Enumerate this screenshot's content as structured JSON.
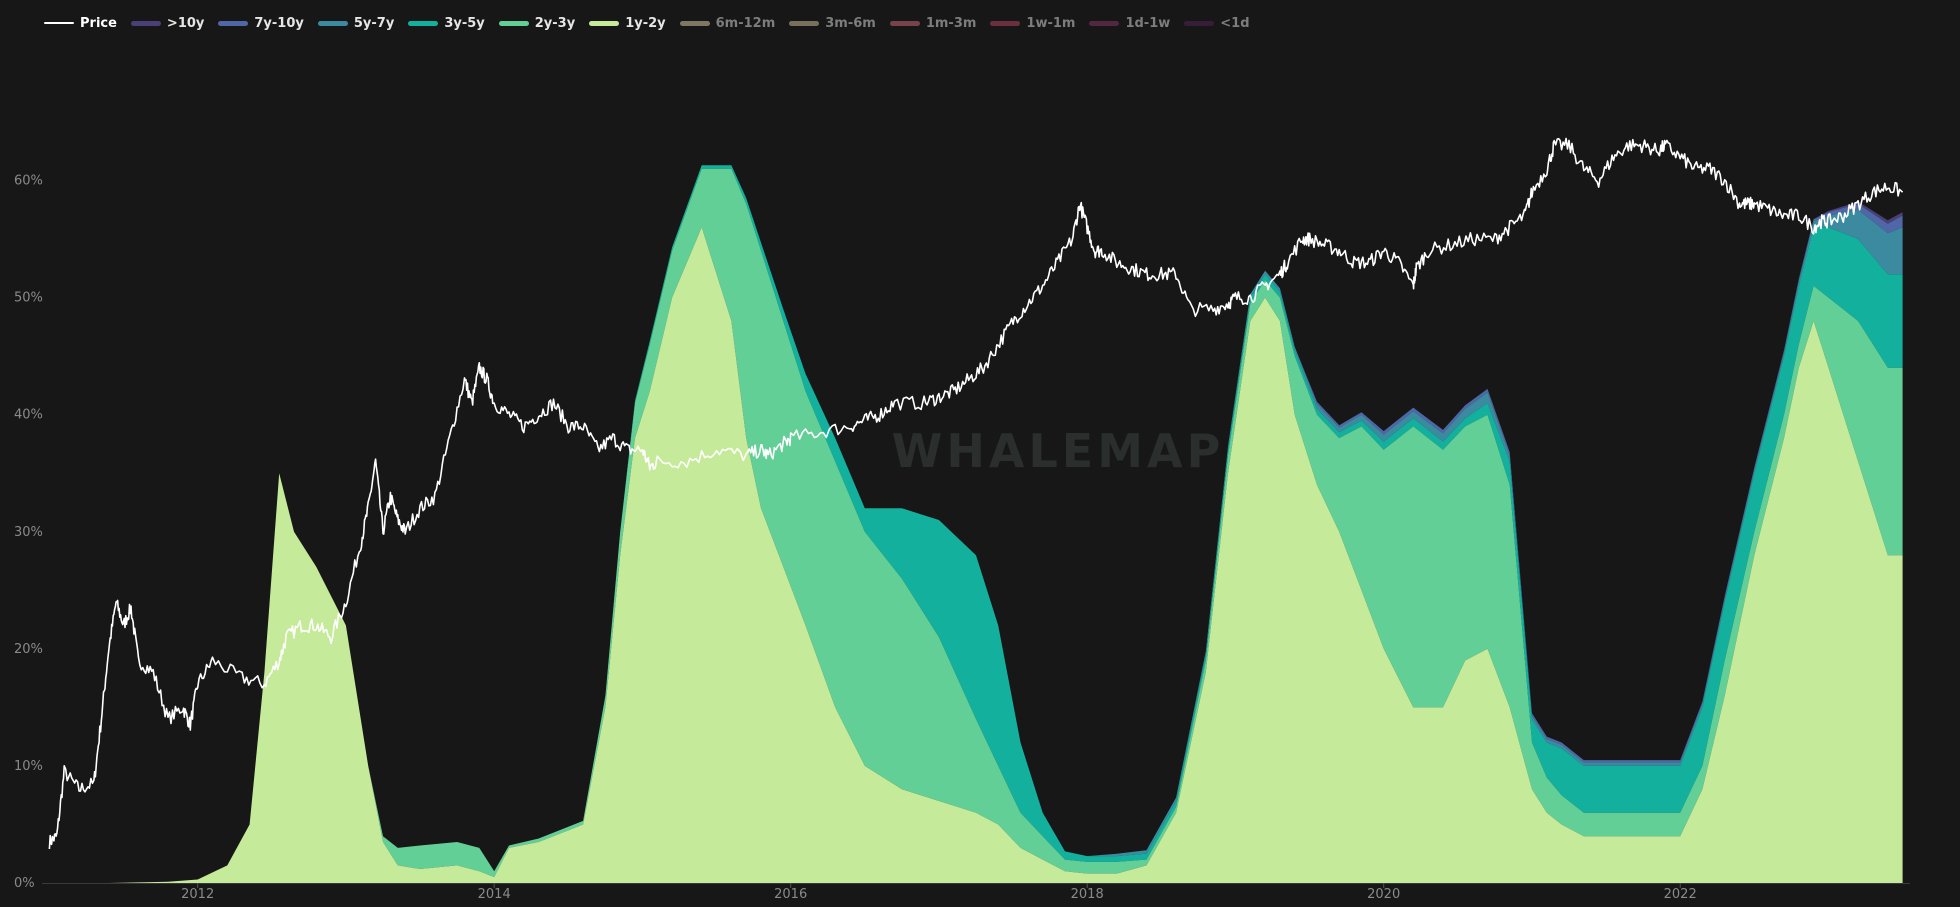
{
  "watermark": "WHALEMAP",
  "legend": [
    {
      "label": "Price",
      "color": "#ffffff",
      "active": true
    },
    {
      "label": ">10y",
      "color": "#4b3f78",
      "active": true
    },
    {
      "label": "7y-10y",
      "color": "#4f67a6",
      "active": true
    },
    {
      "label": "5y-7y",
      "color": "#3b8aa0",
      "active": true
    },
    {
      "label": "3y-5y",
      "color": "#14b09e",
      "active": true
    },
    {
      "label": "2y-3y",
      "color": "#62cf96",
      "active": true
    },
    {
      "label": "1y-2y",
      "color": "#c5eb9a",
      "active": true
    },
    {
      "label": "6m-12m",
      "color": "#8e8a6e",
      "active": false
    },
    {
      "label": "3m-6m",
      "color": "#8a7f6a",
      "active": false
    },
    {
      "label": "1m-3m",
      "color": "#8a4a55",
      "active": false
    },
    {
      "label": "1w-1m",
      "color": "#7a3448",
      "active": false
    },
    {
      "label": "1d-1w",
      "color": "#5e2a45",
      "active": false
    },
    {
      "label": "<1d",
      "color": "#3e1e3f",
      "active": false
    }
  ],
  "chart_data": {
    "type": "area",
    "stacked": true,
    "xlim": [
      2010.95,
      2023.55
    ],
    "ylim": [
      0,
      72
    ],
    "y_ticks": [
      0,
      10,
      20,
      30,
      40,
      50,
      60
    ],
    "y_tick_labels": [
      "0%",
      "10%",
      "20%",
      "30%",
      "40%",
      "50%",
      "60%"
    ],
    "x_ticks": [
      2012,
      2014,
      2016,
      2018,
      2020,
      2022
    ],
    "x_tick_labels": [
      "2012",
      "2014",
      "2016",
      "2018",
      "2020",
      "2022"
    ],
    "grid": false,
    "legend_position": "top-left",
    "x": [
      2011.0,
      2011.4,
      2011.8,
      2012.0,
      2012.2,
      2012.35,
      2012.45,
      2012.55,
      2012.65,
      2012.8,
      2013.0,
      2013.15,
      2013.25,
      2013.35,
      2013.5,
      2013.75,
      2013.9,
      2014.0,
      2014.1,
      2014.3,
      2014.6,
      2014.75,
      2014.85,
      2014.95,
      2015.05,
      2015.2,
      2015.4,
      2015.6,
      2015.7,
      2015.8,
      2015.95,
      2016.1,
      2016.3,
      2016.5,
      2016.75,
      2017.0,
      2017.25,
      2017.4,
      2017.55,
      2017.7,
      2017.85,
      2018.0,
      2018.2,
      2018.4,
      2018.6,
      2018.8,
      2018.95,
      2019.1,
      2019.2,
      2019.3,
      2019.4,
      2019.55,
      2019.7,
      2019.85,
      2020.0,
      2020.2,
      2020.4,
      2020.55,
      2020.7,
      2020.85,
      2021.0,
      2021.1,
      2021.2,
      2021.35,
      2021.5,
      2021.7,
      2021.9,
      2022.0,
      2022.15,
      2022.3,
      2022.5,
      2022.7,
      2022.8,
      2022.9,
      2023.0,
      2023.2,
      2023.4,
      2023.5
    ],
    "series": [
      {
        "name": "1y-2y",
        "values": [
          0,
          0,
          0.1,
          0.3,
          1.5,
          5,
          18,
          35,
          30,
          27,
          22,
          10,
          3.5,
          1.5,
          1.2,
          1.5,
          1,
          0.5,
          3,
          3.5,
          5,
          15,
          28,
          38,
          42,
          50,
          56,
          48,
          38,
          32,
          27,
          22,
          15,
          10,
          8,
          7,
          6,
          5,
          3,
          2,
          1,
          0.8,
          0.8,
          1.5,
          6,
          18,
          35,
          48,
          50,
          48,
          40,
          34,
          30,
          25,
          20,
          15,
          15,
          19,
          20,
          15,
          8,
          6,
          5,
          4,
          4,
          4,
          4,
          4,
          8,
          16,
          28,
          38,
          44,
          48,
          44,
          36,
          28,
          28
        ]
      },
      {
        "name": "2y-3y",
        "values": [
          0,
          0,
          0,
          0,
          0,
          0,
          0,
          0,
          0,
          0,
          0,
          0,
          0.5,
          1.5,
          2,
          2,
          2,
          0.5,
          0.2,
          0.3,
          0.3,
          1,
          2,
          3,
          4,
          4,
          5,
          13,
          20,
          22,
          21,
          20,
          21,
          20,
          18,
          14,
          8,
          5,
          3,
          2,
          1,
          1,
          1,
          0.5,
          0.5,
          1,
          1.5,
          1.5,
          1.5,
          2,
          5,
          6,
          8,
          14,
          17,
          24,
          22,
          20,
          20,
          19,
          4,
          3,
          2.5,
          2,
          2,
          2,
          2,
          2,
          2,
          3,
          2,
          2,
          2,
          3,
          6,
          12,
          16,
          16
        ]
      },
      {
        "name": "3y-5y",
        "values": [
          0,
          0,
          0,
          0,
          0,
          0,
          0,
          0,
          0,
          0,
          0,
          0,
          0,
          0,
          0,
          0,
          0,
          0,
          0,
          0,
          0,
          0,
          0,
          0.2,
          0.3,
          0.3,
          0.3,
          0.3,
          0.5,
          0.7,
          1,
          1.5,
          2,
          2,
          6,
          10,
          14,
          12,
          6,
          2,
          0.7,
          0.5,
          0.5,
          0.5,
          0.5,
          0.5,
          0.5,
          0.5,
          0.5,
          0.5,
          0.5,
          0.5,
          0.5,
          0.5,
          0.7,
          0.7,
          0.7,
          0.7,
          1,
          2,
          2,
          3,
          4,
          4,
          4,
          4,
          4,
          4,
          5,
          5,
          5,
          5,
          5,
          5,
          6,
          7,
          8,
          8
        ]
      },
      {
        "name": "5y-7y",
        "values": [
          0,
          0,
          0,
          0,
          0,
          0,
          0,
          0,
          0,
          0,
          0,
          0,
          0,
          0,
          0,
          0,
          0,
          0,
          0,
          0,
          0,
          0,
          0,
          0,
          0,
          0,
          0,
          0,
          0,
          0,
          0,
          0,
          0,
          0,
          0,
          0,
          0,
          0,
          0,
          0,
          0,
          0,
          0.2,
          0.3,
          0.3,
          0.3,
          0.3,
          0.3,
          0.3,
          0.3,
          0.3,
          0.4,
          0.4,
          0.5,
          0.6,
          0.6,
          0.7,
          0.8,
          0.9,
          0.5,
          0.3,
          0.3,
          0.3,
          0.3,
          0.3,
          0.3,
          0.3,
          0.3,
          0.3,
          0.3,
          0.3,
          0.3,
          0.4,
          0.5,
          1,
          2.5,
          3.5,
          4
        ]
      },
      {
        "name": "7y-10y",
        "values": [
          0,
          0,
          0,
          0,
          0,
          0,
          0,
          0,
          0,
          0,
          0,
          0,
          0,
          0,
          0,
          0,
          0,
          0,
          0,
          0,
          0,
          0,
          0,
          0,
          0,
          0,
          0,
          0,
          0,
          0,
          0,
          0,
          0,
          0,
          0,
          0,
          0,
          0,
          0,
          0,
          0,
          0,
          0,
          0,
          0,
          0,
          0,
          0,
          0,
          0,
          0,
          0.2,
          0.2,
          0.2,
          0.3,
          0.3,
          0.3,
          0.3,
          0.3,
          0.3,
          0.2,
          0.2,
          0.2,
          0.2,
          0.2,
          0.2,
          0.2,
          0.2,
          0.2,
          0.2,
          0.2,
          0.2,
          0.2,
          0.2,
          0.3,
          0.5,
          0.8,
          1
        ]
      },
      {
        "name": ">10y",
        "values": [
          0,
          0,
          0,
          0,
          0,
          0,
          0,
          0,
          0,
          0,
          0,
          0,
          0,
          0,
          0,
          0,
          0,
          0,
          0,
          0,
          0,
          0,
          0,
          0,
          0,
          0,
          0,
          0,
          0,
          0,
          0,
          0,
          0,
          0,
          0,
          0,
          0,
          0,
          0,
          0,
          0,
          0,
          0,
          0,
          0,
          0,
          0,
          0,
          0,
          0,
          0,
          0,
          0,
          0,
          0,
          0,
          0,
          0,
          0,
          0,
          0,
          0,
          0,
          0,
          0,
          0,
          0,
          0,
          0,
          0,
          0,
          0,
          0,
          0,
          0.1,
          0.2,
          0.3,
          0.3
        ]
      }
    ],
    "price_line": {
      "name": "Price",
      "x": [
        2011.0,
        2011.05,
        2011.1,
        2011.2,
        2011.3,
        2011.35,
        2011.4,
        2011.45,
        2011.5,
        2011.55,
        2011.6,
        2011.7,
        2011.8,
        2011.9,
        2011.95,
        2012.0,
        2012.1,
        2012.3,
        2012.45,
        2012.55,
        2012.6,
        2012.7,
        2012.8,
        2012.9,
        2013.0,
        2013.1,
        2013.15,
        2013.2,
        2013.25,
        2013.3,
        2013.35,
        2013.4,
        2013.5,
        2013.6,
        2013.7,
        2013.8,
        2013.85,
        2013.9,
        2013.95,
        2014.0,
        2014.1,
        2014.2,
        2014.3,
        2014.4,
        2014.5,
        2014.6,
        2014.7,
        2014.8,
        2014.9,
        2015.0,
        2015.05,
        2015.1,
        2015.3,
        2015.5,
        2015.7,
        2015.8,
        2015.85,
        2015.95,
        2016.0,
        2016.2,
        2016.4,
        2016.5,
        2016.6,
        2016.7,
        2016.9,
        2017.0,
        2017.1,
        2017.2,
        2017.3,
        2017.4,
        2017.5,
        2017.6,
        2017.7,
        2017.8,
        2017.9,
        2017.95,
        2018.0,
        2018.05,
        2018.1,
        2018.2,
        2018.3,
        2018.4,
        2018.5,
        2018.6,
        2018.7,
        2018.85,
        2018.95,
        2019.0,
        2019.1,
        2019.2,
        2019.3,
        2019.35,
        2019.45,
        2019.5,
        2019.6,
        2019.7,
        2019.8,
        2019.9,
        2020.0,
        2020.1,
        2020.2,
        2020.22,
        2020.3,
        2020.45,
        2020.6,
        2020.75,
        2020.85,
        2020.95,
        2021.0,
        2021.1,
        2021.15,
        2021.25,
        2021.35,
        2021.45,
        2021.55,
        2021.65,
        2021.75,
        2021.85,
        2021.9,
        2022.0,
        2022.1,
        2022.2,
        2022.3,
        2022.4,
        2022.45,
        2022.5,
        2022.6,
        2022.7,
        2022.8,
        2022.9,
        2022.95,
        2023.0,
        2023.1,
        2023.2,
        2023.3,
        2023.4,
        2023.5
      ],
      "values": [
        3.5,
        4,
        9.5,
        8,
        8.5,
        14,
        20,
        24,
        22,
        23.5,
        19,
        18,
        14,
        15,
        13.5,
        17,
        19,
        17.5,
        17,
        19,
        21,
        22,
        22,
        21,
        24,
        29,
        32,
        36,
        30,
        33,
        31,
        30,
        32,
        33,
        38,
        43,
        41,
        44,
        43,
        41,
        40,
        39,
        40,
        41,
        39,
        39,
        37,
        38,
        37,
        37,
        35.5,
        36,
        36,
        37,
        36.5,
        37,
        36.5,
        37.5,
        38,
        38.5,
        39,
        39.5,
        40,
        41,
        41,
        41.5,
        42,
        43,
        44,
        46,
        48,
        49.5,
        51,
        53,
        55,
        58,
        56,
        54,
        54,
        53,
        52.5,
        52,
        52,
        52,
        49,
        49,
        49.5,
        50,
        50,
        51,
        52,
        53,
        55,
        55,
        54.5,
        54,
        53,
        53,
        54,
        53,
        51,
        52.5,
        54,
        54.5,
        55,
        55,
        56,
        57,
        59,
        61,
        63,
        63,
        61,
        60,
        62,
        63,
        63,
        62.5,
        63,
        62,
        61,
        61,
        60,
        58,
        58,
        58,
        57.5,
        57,
        57,
        56,
        56.5,
        56.5,
        57,
        58,
        59,
        59.5,
        59
      ]
    }
  }
}
